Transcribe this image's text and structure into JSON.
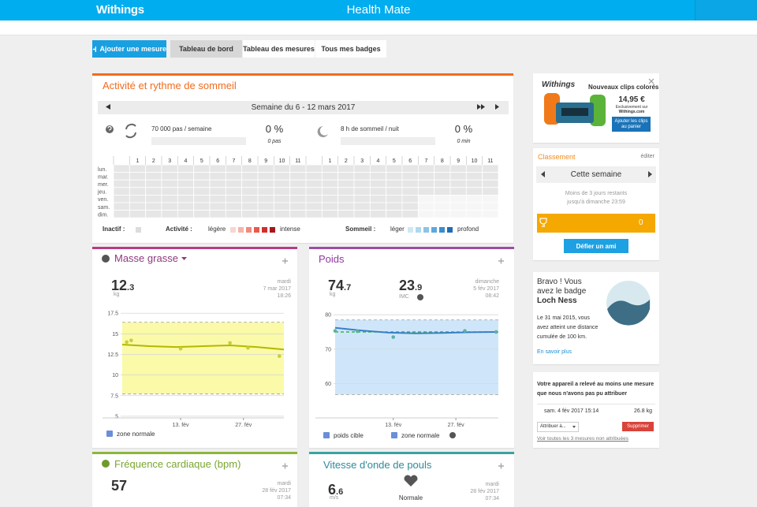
{
  "header": {
    "brand": "Withings",
    "title": "Health Mate"
  },
  "toolbar": {
    "add": "Ajouter une mesure",
    "tabs": [
      "Tableau de bord",
      "Tableau des mesures",
      "Tous mes badges"
    ]
  },
  "activity": {
    "title": "Activité et rythme de sommeil",
    "week": "Semaine du 6 - 12 mars 2017",
    "steps": {
      "goal": "70 000 pas / semaine",
      "percent": "0 %",
      "value": "0 pas"
    },
    "sleep": {
      "goal": "8 h de sommeil / nuit",
      "percent": "0 %",
      "value": "0 min"
    },
    "days": [
      "lun.",
      "mar.",
      "mer.",
      "jeu.",
      "ven.",
      "sam.",
      "dim."
    ],
    "hours": [
      "1",
      "2",
      "3",
      "4",
      "5",
      "6",
      "7",
      "8",
      "9",
      "10",
      "11"
    ],
    "legend": {
      "inactive": "Inactif :",
      "inactive_color": "#dcdcdc",
      "activity": "Activité :",
      "activity_low": "légère",
      "activity_high": "intense",
      "activity_colors": [
        "#f9d5d0",
        "#f5b3aa",
        "#f08a7d",
        "#e65a4d",
        "#d12e2a",
        "#a8171b"
      ],
      "sleep": "Sommeil :",
      "sleep_low": "léger",
      "sleep_high": "profond",
      "sleep_colors": [
        "#cfe7f4",
        "#afd7ee",
        "#8cc4e6",
        "#5fa9da",
        "#3a8dcb",
        "#1f6db3"
      ]
    }
  },
  "fat_mass": {
    "title": "Masse grasse",
    "value": [
      "12",
      ".3"
    ],
    "unit": "kg",
    "day": "mardi",
    "date": "7 mar 2017",
    "time": "18:26"
  },
  "weight": {
    "title": "Poids",
    "value": [
      "74",
      ".7"
    ],
    "unit": "kg",
    "bmi": [
      "23",
      ".9"
    ],
    "bmi_label": "IMC",
    "day": "dimanche",
    "date": "5 fév 2017",
    "time": "08:42"
  },
  "heart_rate": {
    "title": "Fréquence cardiaque (bpm)",
    "value": "57",
    "day": "mardi",
    "date": "28 fév 2017",
    "time": "07:34"
  },
  "pulse_wave": {
    "title": "Vitesse d'onde de pouls",
    "value": [
      "6",
      ".6"
    ],
    "unit": "m/s",
    "status": "Normale",
    "day": "mardi",
    "date": "28 fév 2017",
    "time": "07:34"
  },
  "chart_data": [
    {
      "type": "line",
      "xlim": [
        0,
        36
      ],
      "xticks": [
        {
          "value": 13,
          "label": "13. fév"
        },
        {
          "value": 27,
          "label": "27. fév"
        }
      ],
      "ylim": [
        4.8,
        18
      ],
      "yticks": [
        5,
        7.5,
        10,
        12.5,
        15,
        17.5
      ],
      "grid": true,
      "zones": [
        {
          "name": "zone normale",
          "range": [
            7.7,
            16.4
          ],
          "color": "#fafaa8"
        }
      ],
      "series": [
        {
          "color": "#b4b800",
          "x": [
            0,
            6,
            12,
            18,
            24,
            30,
            36
          ],
          "values": [
            13.7,
            13.5,
            13.4,
            13.5,
            13.6,
            13.4,
            13.1
          ]
        },
        {
          "color": "#c8cd3e",
          "markers": true,
          "x": [
            1,
            2,
            13,
            24,
            28,
            35
          ],
          "values": [
            14.0,
            14.2,
            13.2,
            13.9,
            13.3,
            12.3
          ]
        }
      ]
    },
    {
      "type": "line",
      "xlim": [
        0,
        36.5
      ],
      "xticks": [
        {
          "value": 13,
          "label": "13. fév"
        },
        {
          "value": 27,
          "label": "27. fév"
        }
      ],
      "ylim": [
        50,
        80.5
      ],
      "yticks": [
        60,
        70,
        80
      ],
      "grid": true,
      "zones": [
        {
          "name": "zone normale",
          "range": [
            56.8,
            78.5
          ],
          "color": "#cfe6fa"
        }
      ],
      "targets": [
        {
          "name": "poids cible",
          "value": 75,
          "color": "#3cb44b"
        }
      ],
      "series": [
        {
          "color": "#3a7fc8",
          "x": [
            0,
            6,
            12,
            18,
            24,
            30,
            36
          ],
          "values": [
            76.2,
            75.4,
            74.8,
            74.6,
            74.7,
            74.9,
            75.0
          ]
        },
        {
          "color": "#5fb0a0",
          "markers": true,
          "x": [
            0,
            5,
            13,
            29,
            36
          ],
          "values": [
            75.3,
            75.2,
            73.5,
            75.3,
            75.0
          ]
        }
      ]
    }
  ],
  "ad": {
    "brand": "Withings",
    "headline": "Nouveaux clips colorés",
    "price": "14,95 €",
    "note": [
      "Exclusivement sur",
      "Withings.com"
    ],
    "button": "Ajouter les clips au panier"
  },
  "ranking": {
    "title": "Classement",
    "edit": "éditer",
    "period": "Cette semaine",
    "remaining": [
      "Moins de 3 jours restants",
      "jusqu'à dimanche 23:59"
    ],
    "score": "0",
    "button": "Défier un ami"
  },
  "badge": {
    "headline": [
      "Bravo ! Vous",
      "avez le badge"
    ],
    "name": "Loch Ness",
    "text": [
      "Le 31 mai 2015, vous",
      "avez atteint une distance",
      "cumulée de 100 km."
    ],
    "link": "En savoir plus"
  },
  "unattributed": {
    "message": [
      "Votre appareil a relevé au moins une mesure",
      "que nous n'avons pas pu attribuer"
    ],
    "date": "sam. 4 fév 2017 15:14",
    "value": "26.8 kg",
    "assign": "Attribuer à...",
    "delete": "Supprimer",
    "link": "Voir toutes les 3 mesures non attribuées"
  }
}
